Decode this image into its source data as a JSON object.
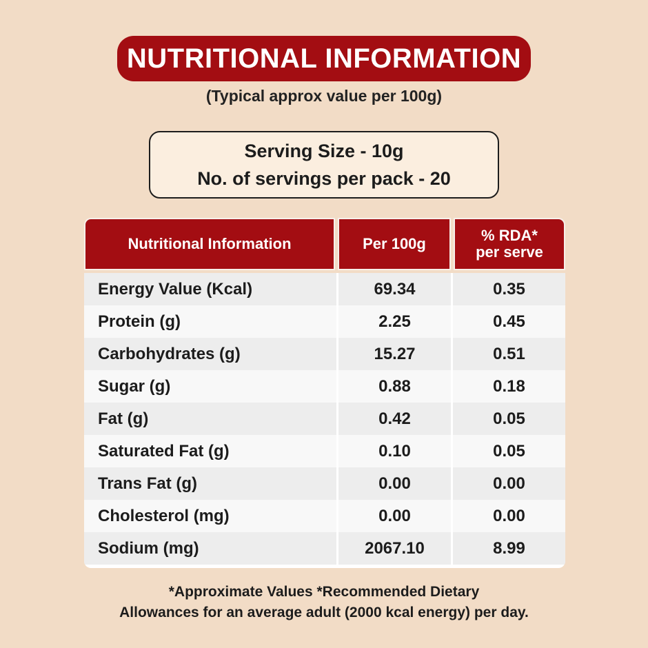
{
  "title": "NUTRITIONAL INFORMATION",
  "subtitle": "(Typical approx value per 100g)",
  "serving": {
    "line1": "Serving Size - 10g",
    "line2": "No. of servings per pack - 20"
  },
  "table": {
    "headers": [
      "Nutritional Information",
      "Per 100g",
      "% RDA*",
      "per serve"
    ],
    "rows": [
      {
        "name": "Energy Value (Kcal)",
        "per100g": "69.34",
        "rda": "0.35"
      },
      {
        "name": "Protein (g)",
        "per100g": "2.25",
        "rda": "0.45"
      },
      {
        "name": "Carbohydrates (g)",
        "per100g": "15.27",
        "rda": "0.51"
      },
      {
        "name": "Sugar (g)",
        "per100g": "0.88",
        "rda": "0.18"
      },
      {
        "name": "Fat (g)",
        "per100g": "0.42",
        "rda": "0.05"
      },
      {
        "name": "Saturated Fat (g)",
        "per100g": "0.10",
        "rda": "0.05"
      },
      {
        "name": "Trans Fat (g)",
        "per100g": "0.00",
        "rda": "0.00"
      },
      {
        "name": "Cholesterol (mg)",
        "per100g": "0.00",
        "rda": "0.00"
      },
      {
        "name": "Sodium (mg)",
        "per100g": "2067.10",
        "rda": "8.99"
      }
    ]
  },
  "footnote": {
    "line1": "*Approximate Values *Recommended Dietary",
    "line2": "Allowances for an average adult (2000 kcal energy) per day."
  },
  "colors": {
    "background": "#f2dcc6",
    "accent": "#a30d12",
    "text": "#1c1c1c"
  }
}
